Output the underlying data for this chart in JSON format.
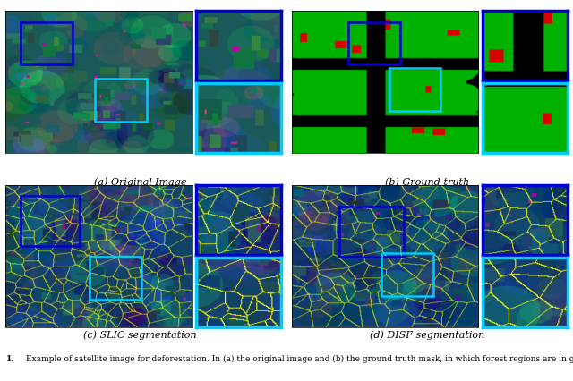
{
  "captions": [
    "(a) Original Image",
    "(b) Ground-truth",
    "(c) SLIC segmentation",
    "(d) DISF segmentation"
  ],
  "figure_number": "1.",
  "caption_text": "Example of satellite image for deforestation. In (a) the original image and (b) the ground truth mask, in which forest regions are in green, recent",
  "background_color": "#ffffff",
  "box1_color": "#0000CC",
  "box2_color": "#00CCFF",
  "inset1_border": "#0000CC",
  "inset2_border": "#00CCFF"
}
